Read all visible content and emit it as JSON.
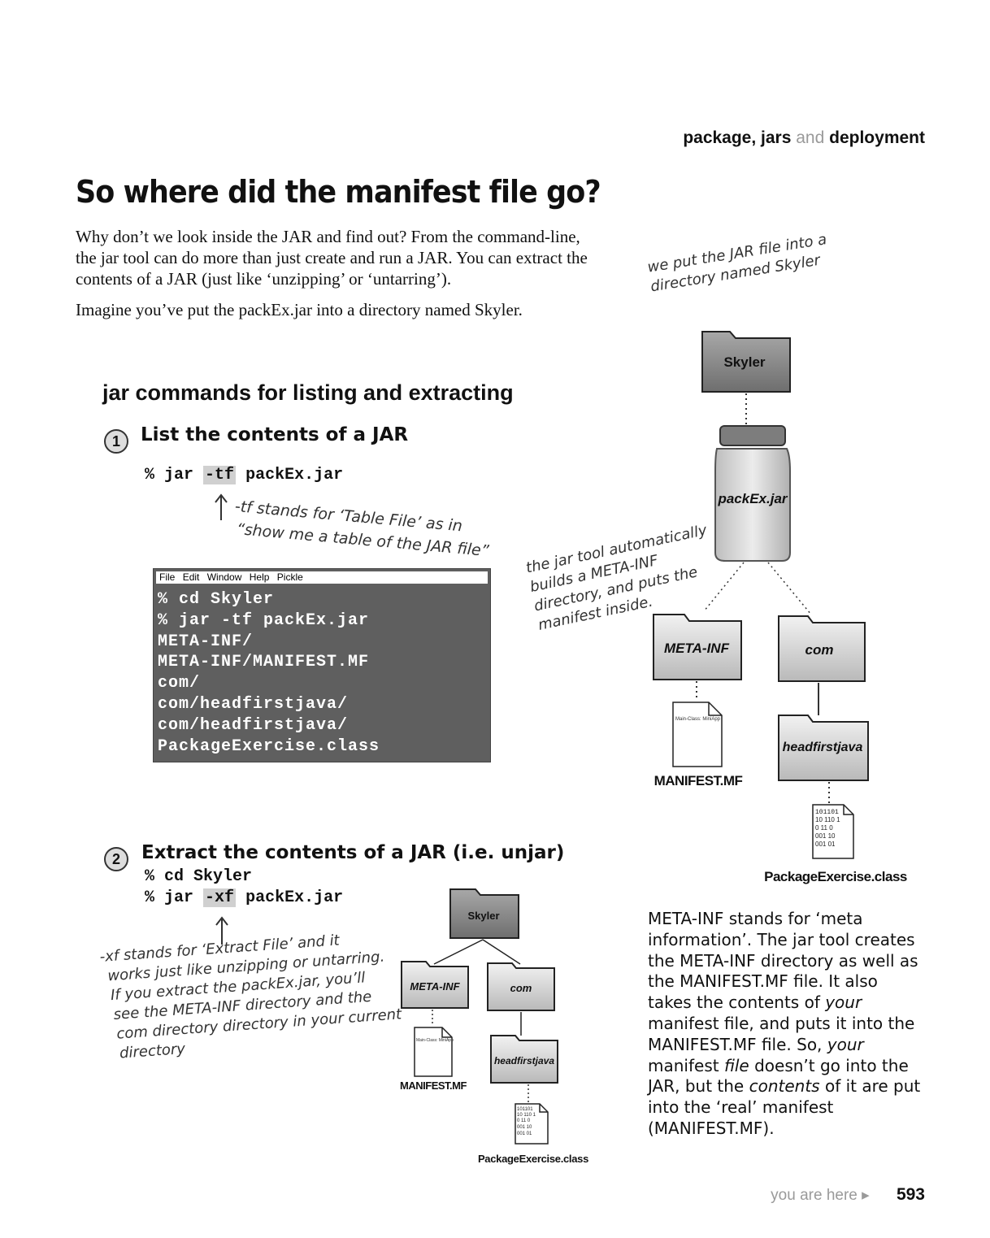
{
  "header": {
    "part1": "package, jars",
    "part2": "and",
    "part3": "deployment"
  },
  "title": "So where did the manifest file go?",
  "intro": {
    "p1": "Why don’t we look inside the JAR and find out? From the command-line, the jar tool can do more than just create and run  a JAR. You can extract the contents of a JAR (just like ‘unzipping’ or ‘untarring’).",
    "p2": "Imagine you’ve put the packEx.jar into a directory named Skyler."
  },
  "section_title": "jar commands for listing and extracting",
  "step1": {
    "number": "1",
    "title": "List the contents of a JAR",
    "cmd_prefix": "% jar",
    "cmd_flag": "-tf",
    "cmd_suffix": "packEx.jar",
    "note_line1": "-tf stands for ‘Table File’ as in",
    "note_line2": "“show me a table of the JAR file”"
  },
  "terminal": {
    "menu": [
      "File",
      "Edit",
      "Window",
      "Help",
      "Pickle"
    ],
    "lines": [
      "% cd Skyler",
      "% jar -tf packEx.jar",
      "META-INF/",
      "META-INF/MANIFEST.MF",
      "com/",
      "com/headfirstjava/",
      "com/headfirstjava/",
      "PackageExercise.class"
    ]
  },
  "step2": {
    "number": "2",
    "title": "Extract the contents of a JAR (i.e. unjar)",
    "cmd1": "% cd Skyler",
    "cmd_prefix": "% jar",
    "cmd_flag": "-xf",
    "cmd_suffix": "packEx.jar",
    "note_lines": [
      "-xf stands for ‘Extract File’ and it",
      "works just like unzipping or untarring.",
      "If you extract the packEx.jar, you’ll",
      "see the META-INF directory and the",
      "com directory directory in your current",
      "directory"
    ]
  },
  "diagram": {
    "note_top": [
      "we put the JAR file into a",
      "directory named Skyler"
    ],
    "note_meta": [
      "the jar tool automatically",
      "builds a META-INF",
      "directory, and puts the",
      "manifest inside."
    ],
    "skyler": "Skyler",
    "jar": "packEx.jar",
    "meta_inf": "META-INF",
    "com": "com",
    "headfirstjava": "headfirstjava",
    "manifest_content": "Main-Class: MiniApp",
    "manifest_file": "MANIFEST.MF",
    "class_bits": [
      "101101",
      "10 110 1",
      "0 11 0",
      "001 10",
      "001 01"
    ],
    "class_file": "PackageExercise.class"
  },
  "side_text": {
    "t1": "META-INF stands for ‘meta information’. The jar tool creates the META-INF directory as well as the MANIFEST.MF file. It also takes the contents of ",
    "your1": "your",
    "t2": " manifest file, and puts it into the MANIFEST.MF file. So, ",
    "your2": "your",
    "t3": " manifest ",
    "file": "file",
    "t4": " doesn’t go into the JAR, but the ",
    "contents": "contents",
    "t5": " of it are put into the ‘real’ manifest (MANIFEST.MF)."
  },
  "footer": {
    "you_are_here": "you are here ▸",
    "page": "593"
  }
}
